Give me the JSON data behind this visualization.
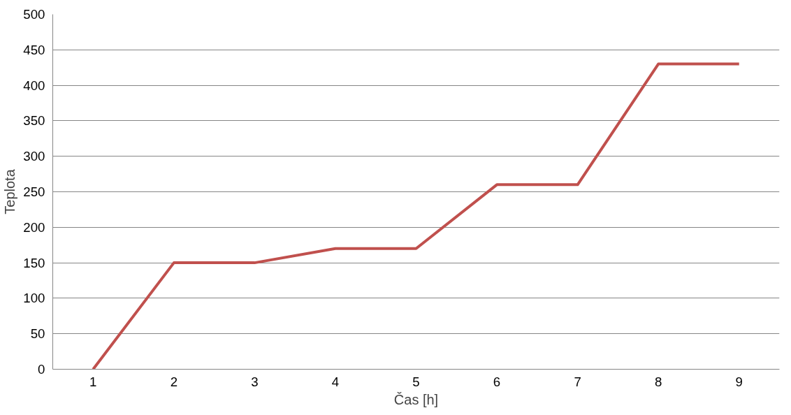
{
  "chart_data": {
    "type": "line",
    "xlabel": "Čas [h]",
    "ylabel": "Teplota",
    "categories": [
      "1",
      "2",
      "3",
      "4",
      "5",
      "6",
      "7",
      "8",
      "9"
    ],
    "series": [
      {
        "color": "#c0504d",
        "values": [
          0,
          150,
          150,
          170,
          170,
          260,
          260,
          430,
          430
        ]
      }
    ],
    "ylim": [
      0,
      500
    ],
    "yticks": [
      0,
      50,
      100,
      150,
      200,
      250,
      300,
      350,
      400,
      450,
      500
    ],
    "grid": "y",
    "marker": "none",
    "line_style": "solid"
  }
}
